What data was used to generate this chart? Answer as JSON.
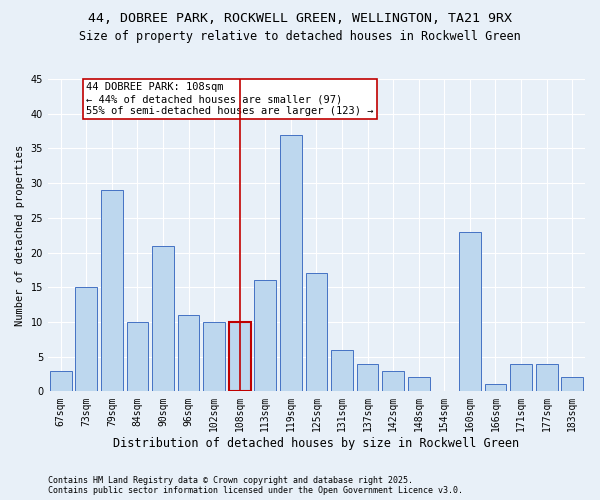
{
  "title1": "44, DOBREE PARK, ROCKWELL GREEN, WELLINGTON, TA21 9RX",
  "title2": "Size of property relative to detached houses in Rockwell Green",
  "xlabel": "Distribution of detached houses by size in Rockwell Green",
  "ylabel": "Number of detached properties",
  "categories": [
    "67sqm",
    "73sqm",
    "79sqm",
    "84sqm",
    "90sqm",
    "96sqm",
    "102sqm",
    "108sqm",
    "113sqm",
    "119sqm",
    "125sqm",
    "131sqm",
    "137sqm",
    "142sqm",
    "148sqm",
    "154sqm",
    "160sqm",
    "166sqm",
    "171sqm",
    "177sqm",
    "183sqm"
  ],
  "values": [
    3,
    15,
    29,
    10,
    21,
    11,
    10,
    10,
    16,
    37,
    17,
    6,
    4,
    3,
    2,
    0,
    23,
    1,
    4,
    4,
    2
  ],
  "bar_color": "#bdd7ee",
  "bar_edge_color": "#4472c4",
  "highlight_index": 7,
  "highlight_line_color": "#c00000",
  "highlight_bar_edge": "#c00000",
  "annotation_text": "44 DOBREE PARK: 108sqm\n← 44% of detached houses are smaller (97)\n55% of semi-detached houses are larger (123) →",
  "annotation_box_color": "white",
  "annotation_box_edge": "#c00000",
  "background_color": "#e8f0f8",
  "ylim": [
    0,
    45
  ],
  "yticks": [
    0,
    5,
    10,
    15,
    20,
    25,
    30,
    35,
    40,
    45
  ],
  "footer1": "Contains HM Land Registry data © Crown copyright and database right 2025.",
  "footer2": "Contains public sector information licensed under the Open Government Licence v3.0.",
  "title1_fontsize": 9.5,
  "title2_fontsize": 8.5,
  "xlabel_fontsize": 8.5,
  "ylabel_fontsize": 7.5,
  "tick_fontsize": 7,
  "annotation_fontsize": 7.5,
  "footer_fontsize": 6.0
}
